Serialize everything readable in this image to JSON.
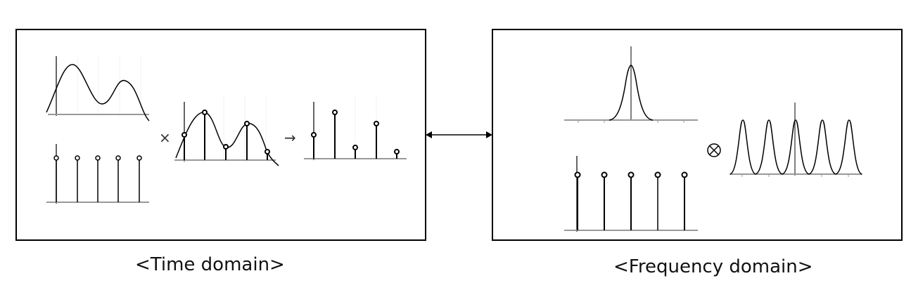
{
  "captions": {
    "time_domain": "<Time domain>",
    "frequency_domain": "<Frequency domain>"
  },
  "operators": {
    "multiply": "×",
    "yields": "→",
    "convolve": "⊗"
  },
  "icons": [
    "double-arrow-icon",
    "convolve-icon"
  ],
  "colors": {
    "stroke": "#000000",
    "axis": "#888888"
  }
}
